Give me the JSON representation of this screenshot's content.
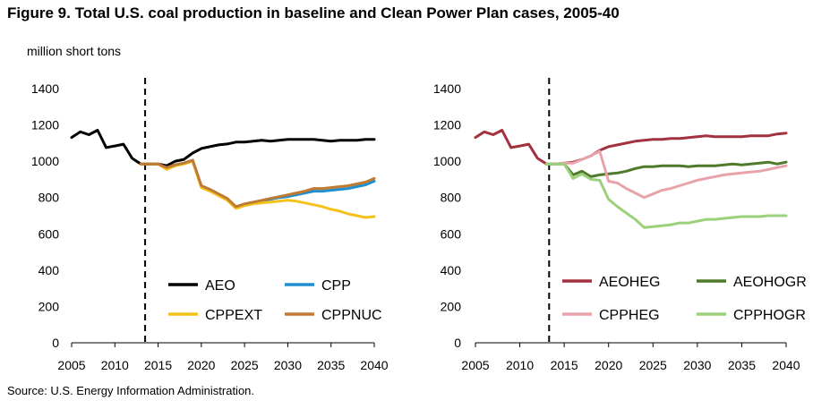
{
  "figure_title": "Figure 9. Total U.S. coal production in baseline and Clean Power Plan cases, 2005-40",
  "unit_label": "million short tons",
  "source": "Source: U.S. Energy Information Administration.",
  "colors": {
    "AEO": "#000000",
    "CPP": "#1f8fd0",
    "CPPEXT": "#f5c11b",
    "CPPNUC": "#c07a32",
    "AEOHEG": "#a4313f",
    "AEOHOGR": "#4f7a2a",
    "CPPHEG": "#e8a3aa",
    "CPPHOGR": "#9bd17c",
    "axis": "#000000"
  },
  "chart_data": [
    {
      "type": "line",
      "title": "",
      "xlabel": "",
      "ylabel": "million short tons",
      "xlim": [
        2005,
        2040
      ],
      "ylim": [
        0,
        1400
      ],
      "xticks": [
        2005,
        2010,
        2015,
        2020,
        2025,
        2030,
        2035,
        2040
      ],
      "yticks": [
        0,
        200,
        400,
        600,
        800,
        1000,
        1200,
        1400
      ],
      "grid": false,
      "vline_x": 2013.5,
      "legend": "bottom, two columns",
      "series": [
        {
          "name": "AEO",
          "color": "#000000",
          "width": 3,
          "x": [
            2005,
            2006,
            2007,
            2008,
            2009,
            2010,
            2011,
            2012,
            2013,
            2014,
            2015,
            2016,
            2017,
            2018,
            2019,
            2020,
            2021,
            2022,
            2023,
            2024,
            2025,
            2026,
            2027,
            2028,
            2029,
            2030,
            2031,
            2032,
            2033,
            2034,
            2035,
            2036,
            2037,
            2038,
            2039,
            2040
          ],
          "y": [
            1131,
            1162,
            1146,
            1171,
            1075,
            1084,
            1094,
            1016,
            985,
            985,
            985,
            975,
            1000,
            1010,
            1045,
            1070,
            1080,
            1090,
            1095,
            1105,
            1105,
            1110,
            1115,
            1110,
            1115,
            1120,
            1120,
            1120,
            1120,
            1115,
            1110,
            1115,
            1115,
            1115,
            1120,
            1120
          ]
        },
        {
          "name": "CPP",
          "color": "#1f8fd0",
          "width": 3,
          "x": [
            2013,
            2014,
            2015,
            2016,
            2017,
            2018,
            2019,
            2020,
            2021,
            2022,
            2023,
            2024,
            2025,
            2026,
            2027,
            2028,
            2029,
            2030,
            2031,
            2032,
            2033,
            2034,
            2035,
            2036,
            2037,
            2038,
            2039,
            2040
          ],
          "y": [
            985,
            985,
            985,
            960,
            980,
            990,
            1005,
            860,
            840,
            815,
            790,
            745,
            760,
            770,
            780,
            790,
            800,
            805,
            815,
            825,
            835,
            835,
            840,
            845,
            850,
            860,
            870,
            890
          ]
        },
        {
          "name": "CPPEXT",
          "color": "#f5c11b",
          "width": 3,
          "x": [
            2013,
            2014,
            2015,
            2016,
            2017,
            2018,
            2019,
            2020,
            2021,
            2022,
            2023,
            2024,
            2025,
            2026,
            2027,
            2028,
            2029,
            2030,
            2031,
            2032,
            2033,
            2034,
            2035,
            2036,
            2037,
            2038,
            2039,
            2040
          ],
          "y": [
            985,
            985,
            985,
            955,
            975,
            985,
            1000,
            855,
            835,
            810,
            785,
            740,
            755,
            765,
            770,
            775,
            780,
            785,
            780,
            770,
            760,
            750,
            735,
            725,
            710,
            700,
            690,
            695
          ]
        },
        {
          "name": "CPPNUC",
          "color": "#c07a32",
          "width": 3,
          "x": [
            2013,
            2014,
            2015,
            2016,
            2017,
            2018,
            2019,
            2020,
            2021,
            2022,
            2023,
            2024,
            2025,
            2026,
            2027,
            2028,
            2029,
            2030,
            2031,
            2032,
            2033,
            2034,
            2035,
            2036,
            2037,
            2038,
            2039,
            2040
          ],
          "y": [
            985,
            985,
            985,
            965,
            980,
            990,
            1005,
            865,
            845,
            820,
            795,
            750,
            765,
            775,
            785,
            795,
            805,
            815,
            825,
            835,
            850,
            850,
            855,
            860,
            865,
            875,
            885,
            905
          ]
        }
      ],
      "legend_labels": [
        "AEO",
        "CPP",
        "CPPEXT",
        "CPPNUC"
      ]
    },
    {
      "type": "line",
      "title": "",
      "xlabel": "",
      "ylabel": "",
      "xlim": [
        2005,
        2040
      ],
      "ylim": [
        0,
        1400
      ],
      "xticks": [
        2005,
        2010,
        2015,
        2020,
        2025,
        2030,
        2035,
        2040
      ],
      "yticks": [
        0,
        200,
        400,
        600,
        800,
        1000,
        1200,
        1400
      ],
      "grid": false,
      "vline_x": 2013.3,
      "legend": "bottom, two columns",
      "series": [
        {
          "name": "AEOHEG",
          "color": "#a4313f",
          "width": 3,
          "x": [
            2005,
            2006,
            2007,
            2008,
            2009,
            2010,
            2011,
            2012,
            2013,
            2014,
            2015,
            2016,
            2017,
            2018,
            2019,
            2020,
            2021,
            2022,
            2023,
            2024,
            2025,
            2026,
            2027,
            2028,
            2029,
            2030,
            2031,
            2032,
            2033,
            2034,
            2035,
            2036,
            2037,
            2038,
            2039,
            2040
          ],
          "y": [
            1131,
            1162,
            1146,
            1171,
            1075,
            1084,
            1094,
            1016,
            985,
            985,
            990,
            995,
            1010,
            1030,
            1060,
            1080,
            1090,
            1100,
            1110,
            1115,
            1120,
            1120,
            1125,
            1125,
            1130,
            1135,
            1140,
            1135,
            1135,
            1135,
            1135,
            1140,
            1140,
            1140,
            1150,
            1155
          ]
        },
        {
          "name": "AEOHOGR",
          "color": "#4f7a2a",
          "width": 3,
          "x": [
            2013,
            2014,
            2015,
            2016,
            2017,
            2018,
            2019,
            2020,
            2021,
            2022,
            2023,
            2024,
            2025,
            2026,
            2027,
            2028,
            2029,
            2030,
            2031,
            2032,
            2033,
            2034,
            2035,
            2036,
            2037,
            2038,
            2039,
            2040
          ],
          "y": [
            985,
            985,
            985,
            925,
            945,
            915,
            925,
            930,
            935,
            945,
            960,
            970,
            970,
            975,
            975,
            975,
            970,
            975,
            975,
            975,
            980,
            985,
            980,
            985,
            990,
            995,
            985,
            995
          ]
        },
        {
          "name": "CPPHEG",
          "color": "#e8a3aa",
          "width": 3,
          "x": [
            2013,
            2014,
            2015,
            2016,
            2017,
            2018,
            2019,
            2020,
            2021,
            2022,
            2023,
            2024,
            2025,
            2026,
            2027,
            2028,
            2029,
            2030,
            2031,
            2032,
            2033,
            2034,
            2035,
            2036,
            2037,
            2038,
            2039,
            2040
          ],
          "y": [
            985,
            985,
            990,
            990,
            1010,
            1030,
            1055,
            890,
            880,
            850,
            825,
            800,
            820,
            840,
            850,
            865,
            880,
            895,
            905,
            915,
            925,
            930,
            935,
            940,
            945,
            955,
            965,
            975
          ]
        },
        {
          "name": "CPPHOGR",
          "color": "#9bd17c",
          "width": 3,
          "x": [
            2013,
            2014,
            2015,
            2016,
            2017,
            2018,
            2019,
            2020,
            2021,
            2022,
            2023,
            2024,
            2025,
            2026,
            2027,
            2028,
            2029,
            2030,
            2031,
            2032,
            2033,
            2034,
            2035,
            2036,
            2037,
            2038,
            2039,
            2040
          ],
          "y": [
            985,
            985,
            985,
            905,
            930,
            900,
            895,
            790,
            750,
            715,
            680,
            635,
            640,
            645,
            650,
            660,
            660,
            670,
            680,
            680,
            685,
            690,
            695,
            695,
            695,
            700,
            700,
            700
          ]
        }
      ],
      "legend_labels": [
        "AEOHEG",
        "AEOHOGR",
        "CPPHEG",
        "CPPHOGR"
      ]
    }
  ]
}
